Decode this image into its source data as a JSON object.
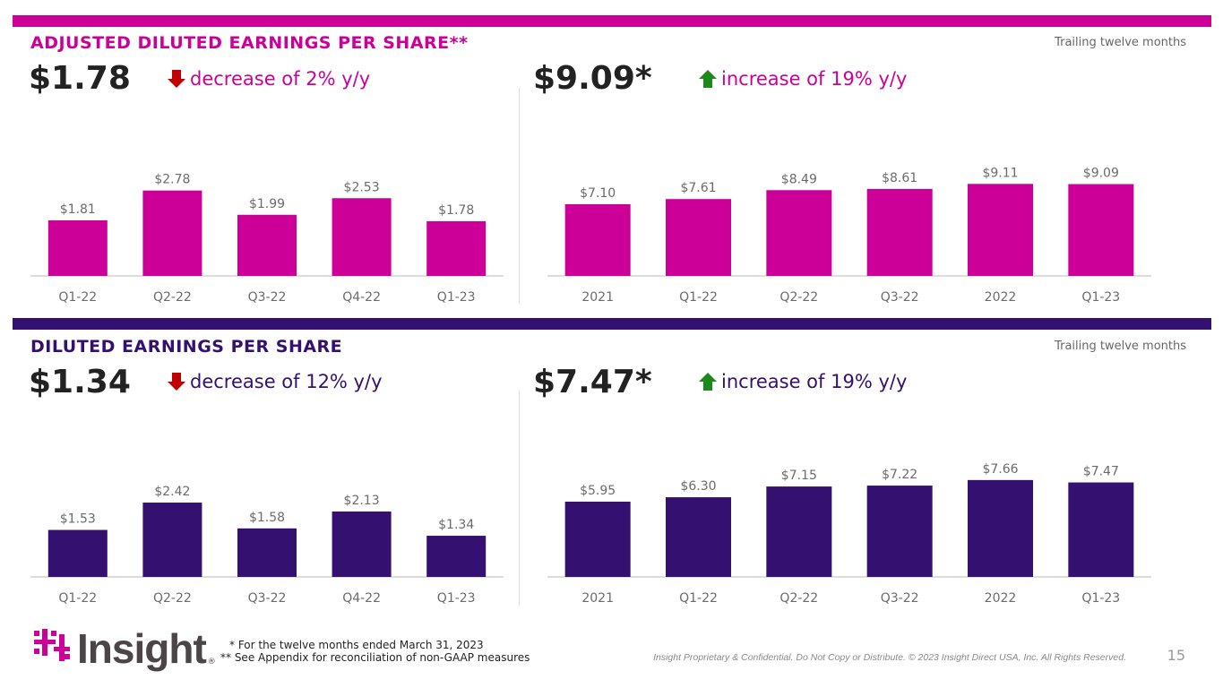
{
  "colors": {
    "magenta": "#cc0099",
    "purple": "#341070",
    "down": "#c00000",
    "up": "#1a8a1a"
  },
  "top": {
    "title": "ADJUSTED DILUTED EARNINGS PER SHARE**",
    "ttm_label": "Trailing twelve months",
    "left": {
      "value": "$1.78",
      "delta_text": "decrease of 2% y/y",
      "arrow": "down-arrow-icon"
    },
    "right": {
      "value": "$9.09*",
      "delta_text": "increase of 19% y/y",
      "arrow": "up-arrow-icon"
    }
  },
  "bottom": {
    "title": "DILUTED EARNINGS PER SHARE",
    "ttm_label": "Trailing twelve months",
    "left": {
      "value": "$1.34",
      "delta_text": "decrease of 12% y/y",
      "arrow": "down-arrow-icon"
    },
    "right": {
      "value": "$7.47*",
      "delta_text": "increase of 19% y/y",
      "arrow": "up-arrow-icon"
    }
  },
  "chart_data": [
    {
      "id": "adj-quarterly",
      "type": "bar",
      "color": "#cc0099",
      "categories": [
        "Q1-22",
        "Q2-22",
        "Q3-22",
        "Q4-22",
        "Q1-23"
      ],
      "values": [
        1.81,
        2.78,
        1.99,
        2.53,
        1.78
      ],
      "labels": [
        "$1.81",
        "$2.78",
        "$1.99",
        "$2.53",
        "$1.78"
      ],
      "ylim": [
        0,
        4.9
      ]
    },
    {
      "id": "adj-ttm",
      "type": "bar",
      "color": "#cc0099",
      "categories": [
        "2021",
        "Q1-22",
        "Q2-22",
        "Q3-22",
        "2022",
        "Q1-23"
      ],
      "values": [
        7.1,
        7.61,
        8.49,
        8.61,
        9.11,
        9.09
      ],
      "labels": [
        "$7.10",
        "$7.61",
        "$8.49",
        "$8.61",
        "$9.11",
        "$9.09"
      ],
      "ylim": [
        0,
        14.9
      ]
    },
    {
      "id": "dil-quarterly",
      "type": "bar",
      "color": "#341070",
      "categories": [
        "Q1-22",
        "Q2-22",
        "Q3-22",
        "Q4-22",
        "Q1-23"
      ],
      "values": [
        1.53,
        2.42,
        1.58,
        2.13,
        1.34
      ],
      "labels": [
        "$1.53",
        "$2.42",
        "$1.58",
        "$2.13",
        "$1.34"
      ],
      "ylim": [
        0,
        4.9
      ]
    },
    {
      "id": "dil-ttm",
      "type": "bar",
      "color": "#341070",
      "categories": [
        "2021",
        "Q1-22",
        "Q2-22",
        "Q3-22",
        "2022",
        "Q1-23"
      ],
      "values": [
        5.95,
        6.3,
        7.15,
        7.22,
        7.66,
        7.47
      ],
      "labels": [
        "$5.95",
        "$6.30",
        "$7.15",
        "$7.22",
        "$7.66",
        "$7.47"
      ],
      "ylim": [
        0,
        11.9
      ]
    }
  ],
  "footer": {
    "logo_text": "Insight",
    "registered": "®",
    "footnote1": "* For the twelve months ended March 31, 2023",
    "footnote2": "** See Appendix for reconciliation of non-GAAP measures",
    "legal": "Insight Proprietary & Confidential. Do Not Copy or Distribute. © 2023 Insight Direct USA, Inc. All Rights Reserved.",
    "page_number": "15"
  }
}
